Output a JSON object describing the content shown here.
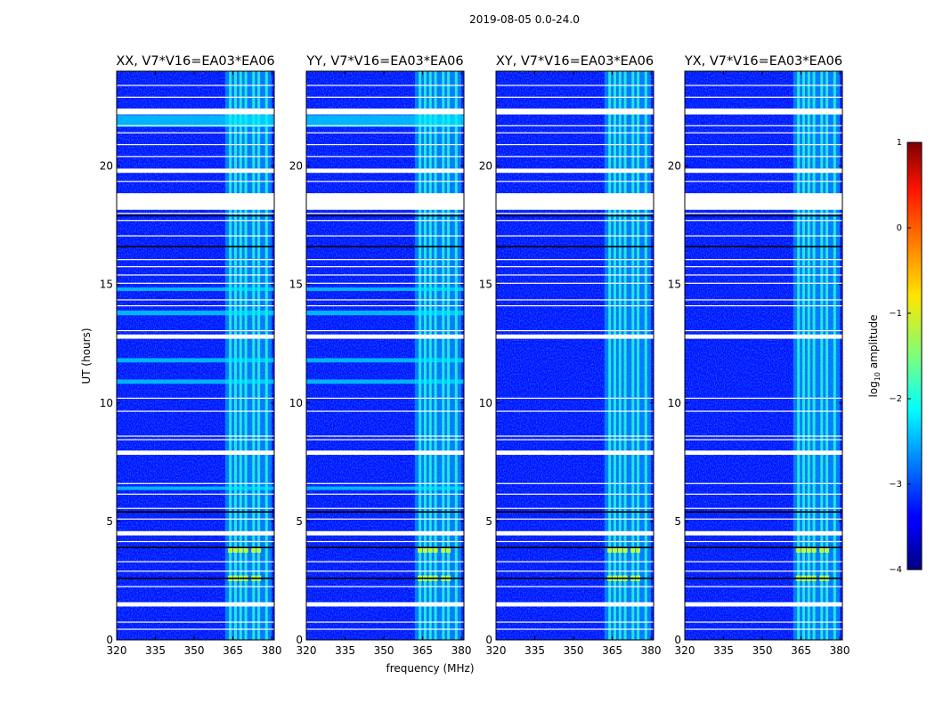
{
  "suptitle": "2019-08-05 0.0-24.0",
  "chart_data": {
    "type": "heatmap",
    "xlabel": "frequency (MHz)",
    "ylabel": "UT (hours)",
    "xlim": [
      320,
      381
    ],
    "ylim": [
      0,
      24
    ],
    "xticks": [
      320,
      335,
      350,
      365,
      380
    ],
    "yticks": [
      0,
      5,
      10,
      15,
      20
    ],
    "panels": [
      {
        "title": "XX, V7*V16=EA03*EA06",
        "polarization": "XX"
      },
      {
        "title": "YY, V7*V16=EA03*EA06",
        "polarization": "YY"
      },
      {
        "title": "XY, V7*V16=EA03*EA06",
        "polarization": "XY"
      },
      {
        "title": "YX, V7*V16=EA03*EA06",
        "polarization": "YX"
      }
    ],
    "features": {
      "background_log10_amplitude": -3.3,
      "rfi_band_mhz": [
        362,
        380
      ],
      "rfi_columns_mhz": [
        364,
        366,
        368,
        370,
        373,
        375,
        378
      ],
      "strong_rfi_times_hours": [
        2.6,
        3.8
      ],
      "strong_rfi_log10_amplitude": -1.2,
      "flagged_rows_hours": [
        1.5,
        4.5,
        7.9,
        12.8,
        18.5,
        19.8,
        22.3
      ],
      "cross_pol_weak_rows": true
    },
    "colorbar": {
      "label": "log",
      "label_sub": "10",
      "label_rest": " amplitude",
      "min": -4,
      "max": 1,
      "ticks": [
        "1",
        "0",
        "−1",
        "−2",
        "−3",
        "−4"
      ],
      "tick_values": [
        1,
        0,
        -1,
        -2,
        -3,
        -4
      ],
      "colormap": "jet"
    }
  }
}
